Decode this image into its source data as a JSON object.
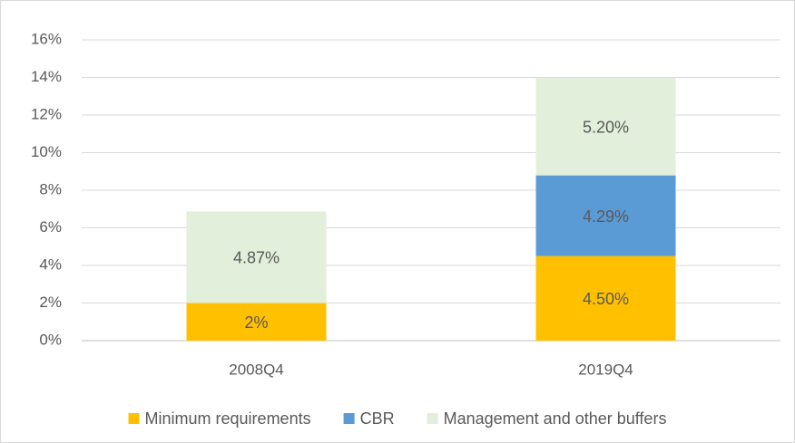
{
  "chart_data": {
    "type": "stacked-bar",
    "categories": [
      "2008Q4",
      "2019Q4"
    ],
    "series": [
      {
        "name": "Minimum requirements",
        "color": "#ffc000",
        "values": [
          2,
          4.5
        ],
        "value_labels": [
          "2%",
          "4.50%"
        ]
      },
      {
        "name": "CBR",
        "color": "#5b9bd5",
        "values": [
          null,
          4.29
        ],
        "value_labels": [
          null,
          "4.29%"
        ]
      },
      {
        "name": "Management and other buffers",
        "color": "#e2efda",
        "values": [
          4.87,
          5.2
        ],
        "value_labels": [
          "4.87%",
          "5.20%"
        ]
      }
    ],
    "ylim": [
      0,
      16
    ],
    "yticks": [
      {
        "value": 0,
        "label": "0%"
      },
      {
        "value": 2,
        "label": "2%"
      },
      {
        "value": 4,
        "label": "4%"
      },
      {
        "value": 6,
        "label": "6%"
      },
      {
        "value": 8,
        "label": "8%"
      },
      {
        "value": 10,
        "label": "10%"
      },
      {
        "value": 12,
        "label": "12%"
      },
      {
        "value": 14,
        "label": "14%"
      },
      {
        "value": 16,
        "label": "16%"
      }
    ],
    "grid": true,
    "legend": "bottom"
  }
}
